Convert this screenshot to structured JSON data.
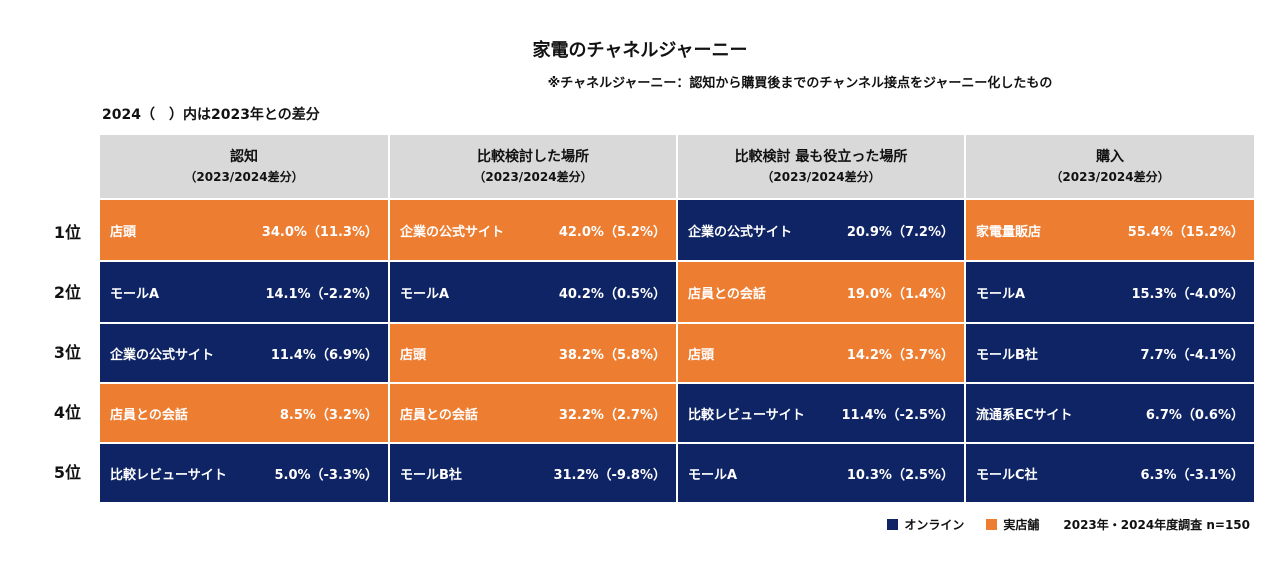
{
  "title": "家電のチャネルジャーニー",
  "subtitle": "※チャネルジャーニー：認知から購買後までのチャンネル接点をジャーニー化したもの",
  "note": "2024（　）内は2023年との差分",
  "colors": {
    "online": "#0f2464",
    "store": "#ed7d31",
    "header": "#d9d9d9"
  },
  "legend": {
    "online": "オンライン",
    "store": "実店舗",
    "survey": "2023年・2024年度調査 n=150"
  },
  "chart_data": {
    "type": "table",
    "ranks": [
      "1位",
      "2位",
      "3位",
      "4位",
      "5位"
    ],
    "columns": [
      {
        "title": "認知",
        "sub": "（2023/2024差分）",
        "rows": [
          {
            "name": "店頭",
            "value": "34.0%（11.3%）",
            "type": "store"
          },
          {
            "name": "モールA",
            "value": "14.1%（-2.2%）",
            "type": "online"
          },
          {
            "name": "企業の公式サイト",
            "value": "11.4%（6.9%）",
            "type": "online"
          },
          {
            "name": "店員との会話",
            "value": "8.5%（3.2%）",
            "type": "store"
          },
          {
            "name": "比較レビューサイト",
            "value": "5.0%（-3.3%）",
            "type": "online"
          }
        ]
      },
      {
        "title": "比較検討した場所",
        "sub": "（2023/2024差分）",
        "rows": [
          {
            "name": "企業の公式サイト",
            "value": "42.0%（5.2%）",
            "type": "store"
          },
          {
            "name": "モールA",
            "value": "40.2%（0.5%）",
            "type": "online"
          },
          {
            "name": "店頭",
            "value": "38.2%（5.8%）",
            "type": "store"
          },
          {
            "name": "店員との会話",
            "value": "32.2%（2.7%）",
            "type": "store"
          },
          {
            "name": "モールB社",
            "value": "31.2%（-9.8%）",
            "type": "online"
          }
        ]
      },
      {
        "title": "比較検討  最も役立った場所",
        "sub": "（2023/2024差分）",
        "rows": [
          {
            "name": "企業の公式サイト",
            "value": "20.9%（7.2%）",
            "type": "online"
          },
          {
            "name": "店員との会話",
            "value": "19.0%（1.4%）",
            "type": "store"
          },
          {
            "name": "店頭",
            "value": "14.2%（3.7%）",
            "type": "store"
          },
          {
            "name": "比較レビューサイト",
            "value": "11.4%（-2.5%）",
            "type": "online"
          },
          {
            "name": "モールA",
            "value": "10.3%（2.5%）",
            "type": "online"
          }
        ]
      },
      {
        "title": "購入",
        "sub": "（2023/2024差分）",
        "rows": [
          {
            "name": "家電量販店",
            "value": "55.4%（15.2%）",
            "type": "store"
          },
          {
            "name": "モールA",
            "value": "15.3%（-4.0%）",
            "type": "online"
          },
          {
            "name": "モールB社",
            "value": "7.7%（-4.1%）",
            "type": "online"
          },
          {
            "name": "流通系ECサイト",
            "value": "6.7%（0.6%）",
            "type": "online"
          },
          {
            "name": "モールC社",
            "value": "6.3%（-3.1%）",
            "type": "online"
          }
        ]
      }
    ]
  }
}
